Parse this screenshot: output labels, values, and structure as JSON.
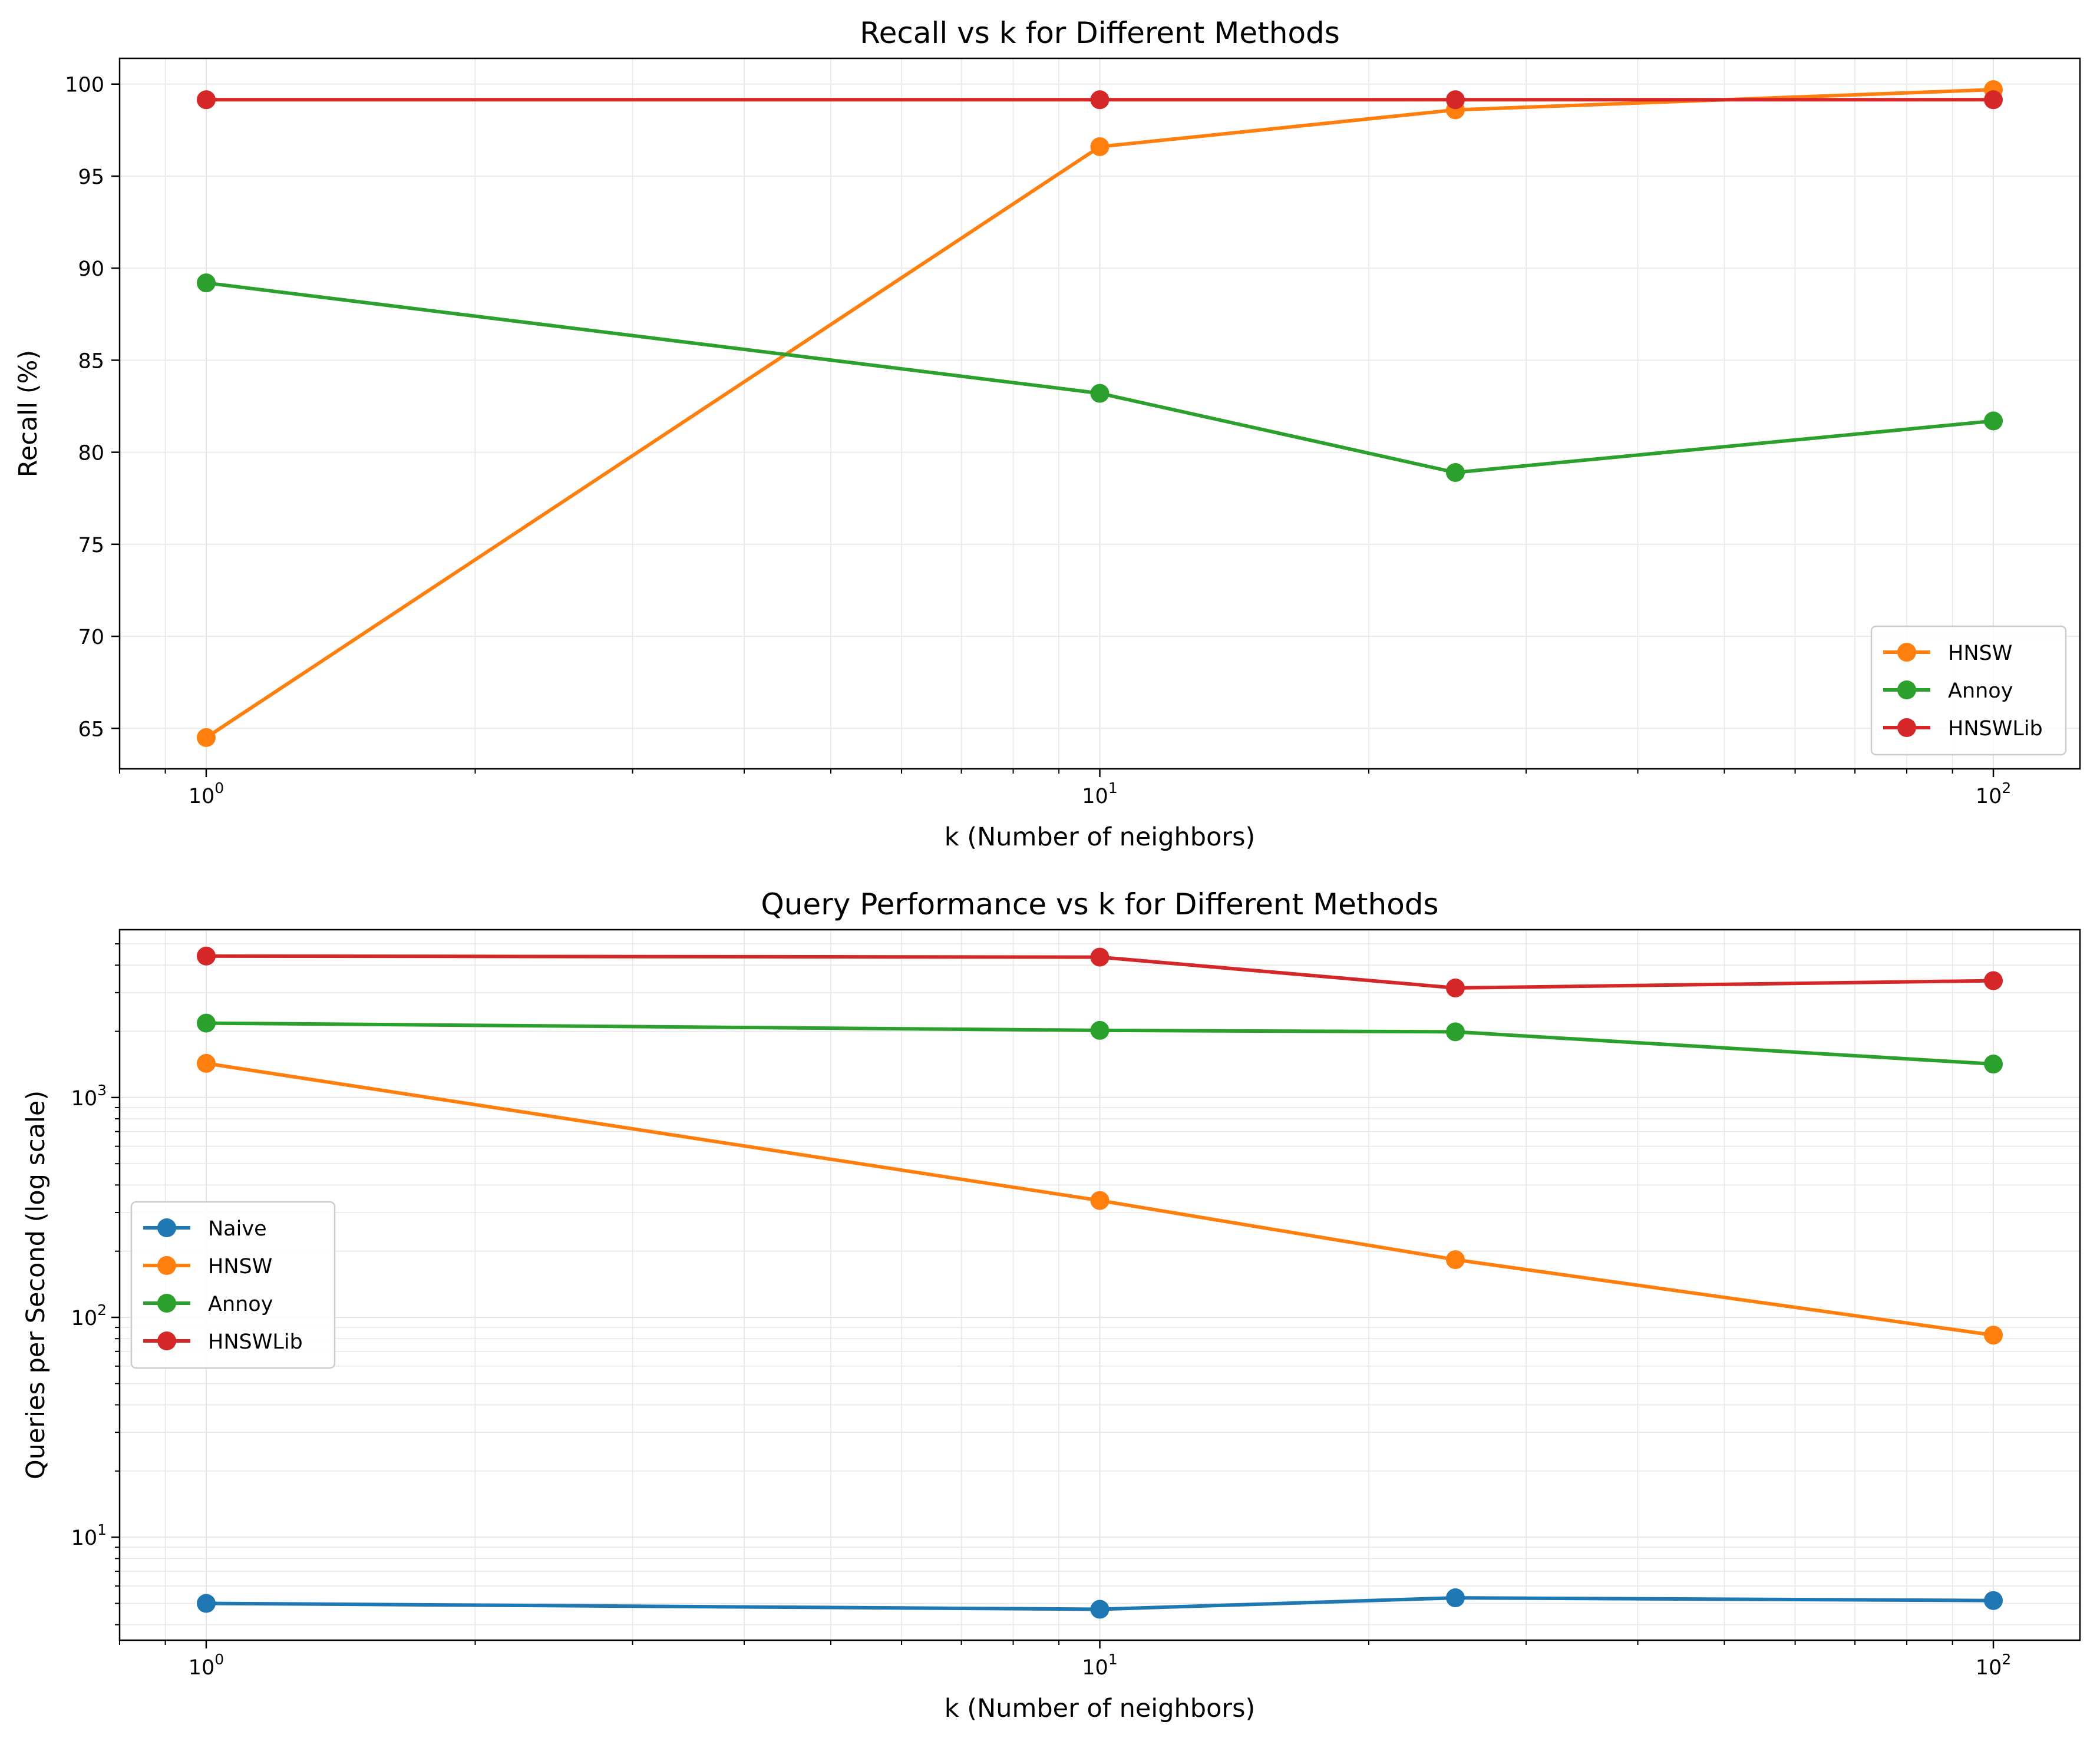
{
  "chart_data": [
    {
      "type": "line",
      "title": "Recall vs k for Different Methods",
      "xlabel": "k (Number of neighbors)",
      "ylabel": "Recall (%)",
      "xscale": "log",
      "xlim": [
        0.8,
        125
      ],
      "ylim": [
        62.8,
        101.4
      ],
      "grid": true,
      "legend_position": "lower right",
      "x": [
        1,
        10,
        25,
        100
      ],
      "x_ticks": [
        {
          "value": 1,
          "base": "10",
          "exp": "0"
        },
        {
          "value": 10,
          "base": "10",
          "exp": "1"
        },
        {
          "value": 100,
          "base": "10",
          "exp": "2"
        }
      ],
      "y_ticks": [
        {
          "value": 65,
          "label": "65"
        },
        {
          "value": 70,
          "label": "70"
        },
        {
          "value": 75,
          "label": "75"
        },
        {
          "value": 80,
          "label": "80"
        },
        {
          "value": 85,
          "label": "85"
        },
        {
          "value": 90,
          "label": "90"
        },
        {
          "value": 95,
          "label": "95"
        },
        {
          "value": 100,
          "label": "100"
        }
      ],
      "series": [
        {
          "name": "HNSW",
          "color": "#ff7f0e",
          "values": [
            64.5,
            96.6,
            98.6,
            99.7
          ]
        },
        {
          "name": "Annoy",
          "color": "#2ca02c",
          "values": [
            89.2,
            83.2,
            78.9,
            81.7
          ]
        },
        {
          "name": "HNSWLib",
          "color": "#d62728",
          "values": [
            99.15,
            99.15,
            99.15,
            99.15
          ]
        }
      ]
    },
    {
      "type": "line",
      "title": "Query Performance vs k for Different Methods",
      "xlabel": "k (Number of neighbors)",
      "ylabel": "Queries per Second (log scale)",
      "xscale": "log",
      "yscale": "log",
      "xlim": [
        0.8,
        125
      ],
      "ylim": [
        3.4,
        5800
      ],
      "grid": true,
      "legend_position": "center left",
      "x": [
        1,
        10,
        25,
        100
      ],
      "x_ticks": [
        {
          "value": 1,
          "base": "10",
          "exp": "0"
        },
        {
          "value": 10,
          "base": "10",
          "exp": "1"
        },
        {
          "value": 100,
          "base": "10",
          "exp": "2"
        }
      ],
      "y_ticks": [
        {
          "value": 10,
          "base": "10",
          "exp": "1"
        },
        {
          "value": 100,
          "base": "10",
          "exp": "2"
        },
        {
          "value": 1000,
          "base": "10",
          "exp": "3"
        }
      ],
      "series": [
        {
          "name": "Naive",
          "color": "#1f77b4",
          "values": [
            5.0,
            4.7,
            5.3,
            5.15
          ]
        },
        {
          "name": "HNSW",
          "color": "#ff7f0e",
          "values": [
            1430,
            340,
            183,
            83
          ]
        },
        {
          "name": "Annoy",
          "color": "#2ca02c",
          "values": [
            2180,
            2020,
            1990,
            1420
          ]
        },
        {
          "name": "HNSWLib",
          "color": "#d62728",
          "values": [
            4400,
            4350,
            3150,
            3400
          ]
        }
      ]
    }
  ]
}
